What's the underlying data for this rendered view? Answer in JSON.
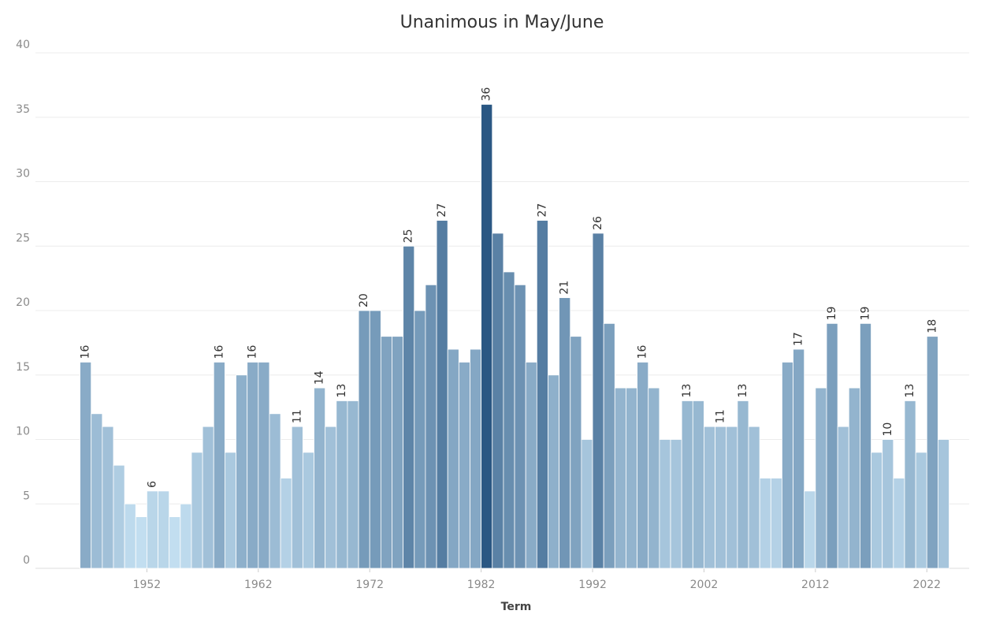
{
  "chart_data": {
    "type": "bar",
    "title": "Unanimous in May/June",
    "x_label": "Term",
    "x": [
      1946,
      1947,
      1948,
      1949,
      1950,
      1951,
      1952,
      1953,
      1954,
      1955,
      1956,
      1957,
      1958,
      1959,
      1960,
      1961,
      1962,
      1963,
      1964,
      1965,
      1966,
      1967,
      1968,
      1969,
      1970,
      1971,
      1972,
      1973,
      1974,
      1975,
      1976,
      1977,
      1978,
      1979,
      1980,
      1981,
      1982,
      1983,
      1984,
      1985,
      1986,
      1987,
      1988,
      1989,
      1990,
      1991,
      1992,
      1993,
      1994,
      1995,
      1996,
      1997,
      1998,
      1999,
      2000,
      2001,
      2002,
      2003,
      2004,
      2005,
      2006,
      2007,
      2008,
      2009,
      2010,
      2011,
      2012,
      2013,
      2014,
      2015,
      2016,
      2017,
      2018,
      2019,
      2020,
      2021,
      2022,
      2023
    ],
    "values": [
      16,
      12,
      11,
      8,
      5,
      4,
      6,
      6,
      4,
      5,
      9,
      11,
      16,
      9,
      15,
      16,
      16,
      12,
      7,
      11,
      9,
      14,
      11,
      13,
      13,
      20,
      20,
      18,
      18,
      25,
      20,
      22,
      27,
      17,
      16,
      17,
      36,
      26,
      23,
      22,
      16,
      27,
      15,
      21,
      18,
      10,
      26,
      19,
      14,
      14,
      16,
      14,
      10,
      10,
      13,
      13,
      11,
      11,
      11,
      13,
      11,
      7,
      7,
      16,
      17,
      6,
      14,
      19,
      11,
      14,
      19,
      9,
      10,
      7,
      13,
      9,
      18,
      10
    ],
    "show_labels": [
      true,
      false,
      false,
      false,
      false,
      false,
      true,
      false,
      false,
      false,
      false,
      false,
      true,
      false,
      false,
      true,
      false,
      false,
      false,
      true,
      false,
      true,
      false,
      true,
      false,
      true,
      false,
      false,
      false,
      true,
      false,
      false,
      true,
      false,
      false,
      false,
      true,
      false,
      false,
      false,
      false,
      true,
      false,
      true,
      false,
      false,
      true,
      false,
      false,
      false,
      true,
      false,
      false,
      false,
      true,
      false,
      false,
      true,
      false,
      true,
      false,
      false,
      false,
      false,
      true,
      false,
      false,
      true,
      false,
      false,
      true,
      false,
      true,
      false,
      true,
      false,
      true,
      false
    ],
    "color_range": [
      "#c2def0",
      "#2a5783"
    ],
    "xlim": [
      1942,
      2025.8
    ],
    "xticks": [
      1952,
      1962,
      1972,
      1982,
      1992,
      2002,
      2012,
      2022
    ],
    "ylim": [
      0,
      40
    ],
    "yticks": [
      0,
      5,
      10,
      15,
      20,
      25,
      30,
      35,
      40
    ],
    "grid": true
  }
}
